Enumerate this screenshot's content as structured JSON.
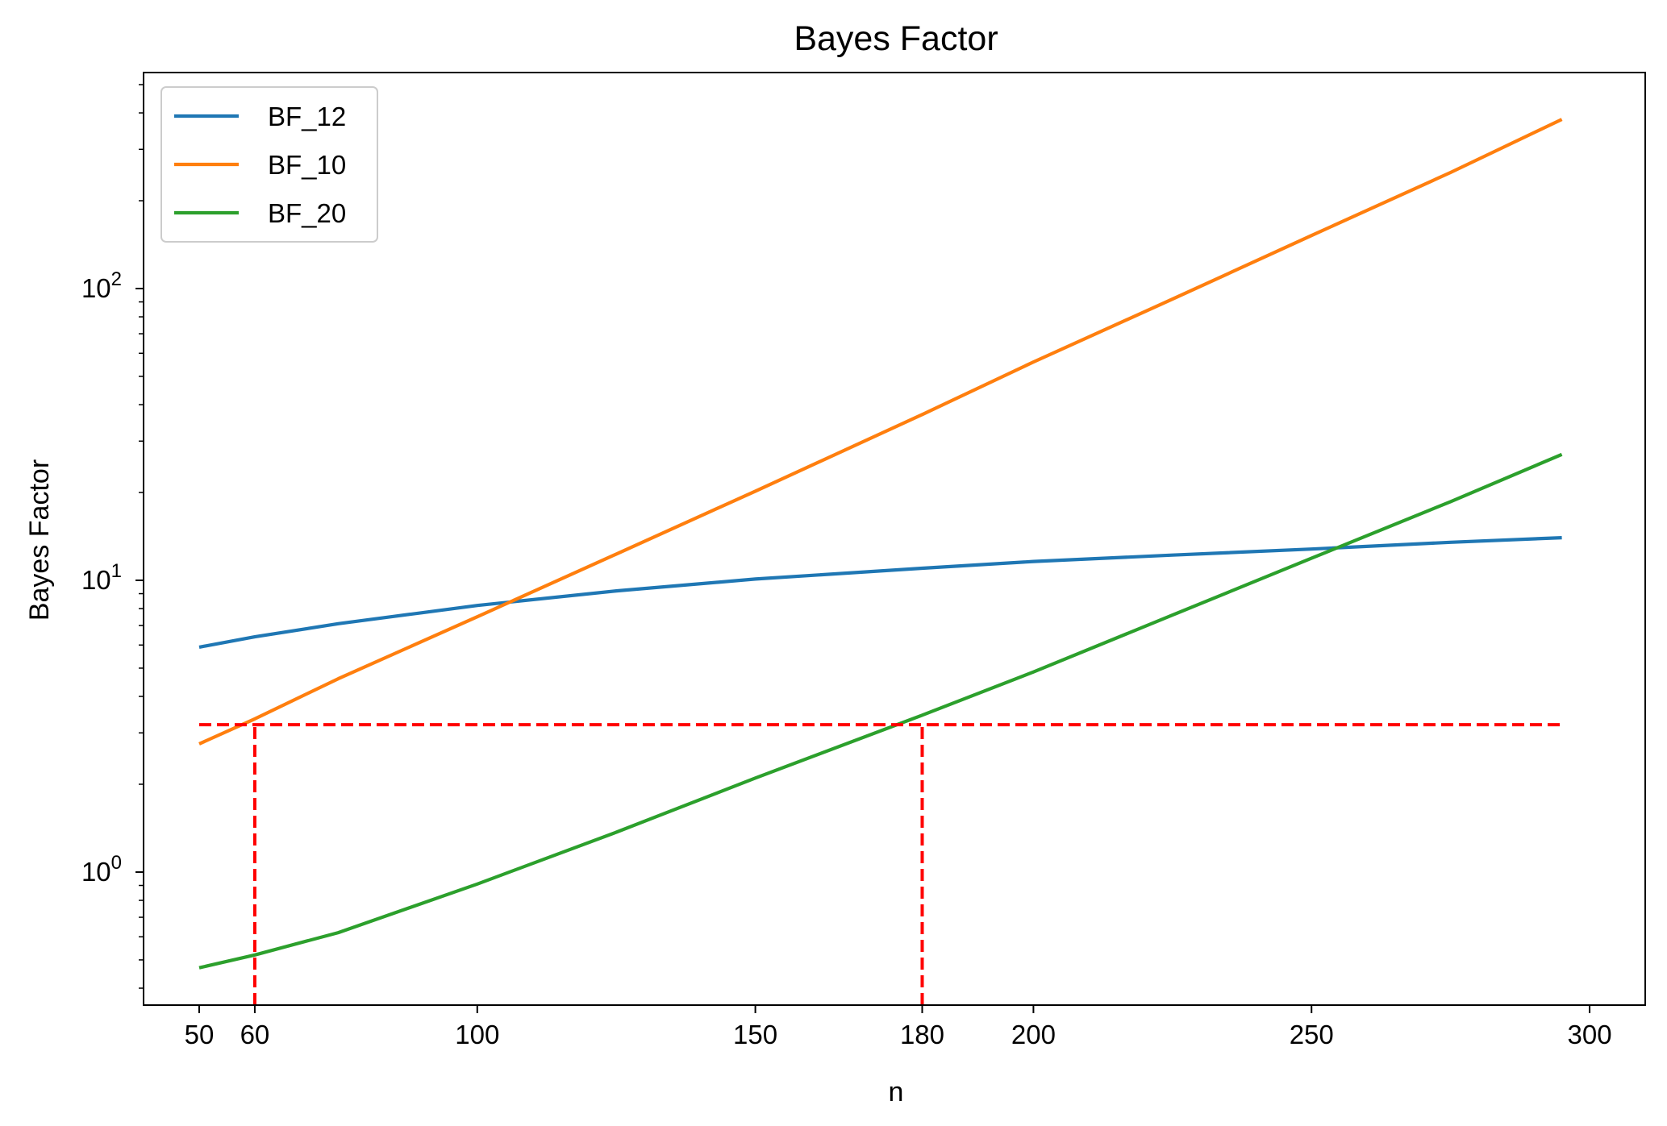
{
  "chart_data": {
    "type": "line",
    "title": "Bayes Factor",
    "xlabel": "n",
    "ylabel": "Bayes Factor",
    "xlim": [
      40,
      310
    ],
    "ylim": [
      0.35,
      550
    ],
    "yscale": "log",
    "grid": false,
    "legend_position": "top-left",
    "x_ticks": [
      {
        "value": 50,
        "label": "50"
      },
      {
        "value": 60,
        "label": "60"
      },
      {
        "value": 100,
        "label": "100"
      },
      {
        "value": 150,
        "label": "150"
      },
      {
        "value": 180,
        "label": "180"
      },
      {
        "value": 200,
        "label": "200"
      },
      {
        "value": 250,
        "label": "250"
      },
      {
        "value": 300,
        "label": "300"
      }
    ],
    "y_ticks": [
      {
        "value": 1,
        "base": "10",
        "exp": "0"
      },
      {
        "value": 10,
        "base": "10",
        "exp": "1"
      },
      {
        "value": 100,
        "base": "10",
        "exp": "2"
      }
    ],
    "x": [
      50,
      60,
      75,
      100,
      125,
      150,
      180,
      200,
      225,
      250,
      275,
      295
    ],
    "series": [
      {
        "name": "BF_12",
        "color": "#1f77b4",
        "values": [
          5.9,
          6.4,
          7.1,
          8.2,
          9.2,
          10.1,
          11.0,
          11.6,
          12.2,
          12.8,
          13.5,
          14.0
        ]
      },
      {
        "name": "BF_10",
        "color": "#ff7f0e",
        "values": [
          2.75,
          3.35,
          4.6,
          7.5,
          12.3,
          20.2,
          37.0,
          56.0,
          92.0,
          152.0,
          250.0,
          380.0
        ]
      },
      {
        "name": "BF_20",
        "color": "#2ca02c",
        "values": [
          0.47,
          0.52,
          0.62,
          0.91,
          1.37,
          2.1,
          3.45,
          4.85,
          7.6,
          11.9,
          18.6,
          27.0
        ]
      }
    ],
    "reference_lines": {
      "color": "#ff0000",
      "threshold": 3.2,
      "n_values": [
        60,
        180
      ],
      "h_x_range": [
        50,
        295
      ]
    }
  }
}
